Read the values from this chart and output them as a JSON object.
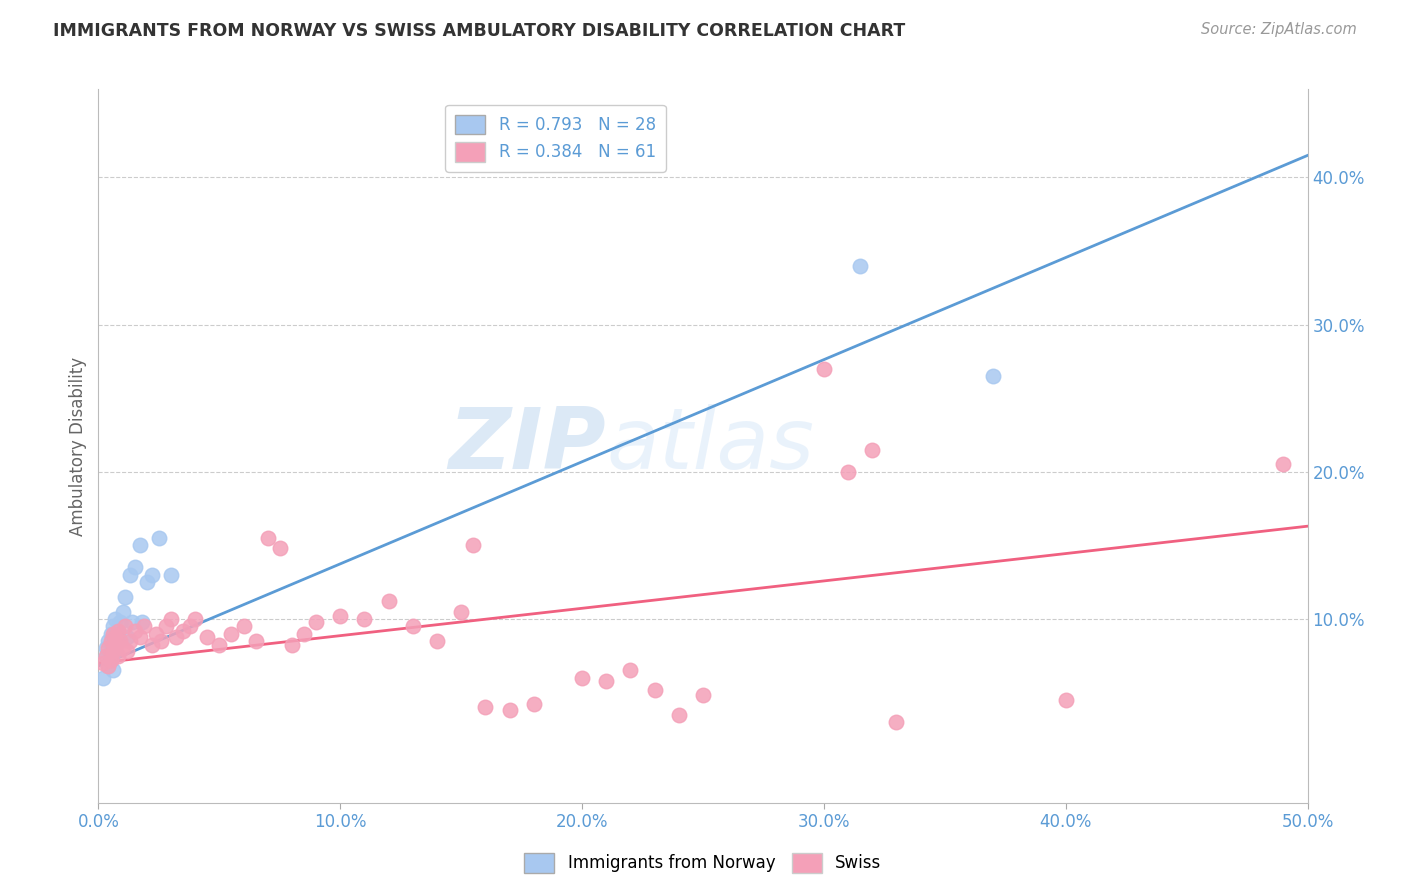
{
  "title": "IMMIGRANTS FROM NORWAY VS SWISS AMBULATORY DISABILITY CORRELATION CHART",
  "source": "Source: ZipAtlas.com",
  "ylabel": "Ambulatory Disability",
  "xlim": [
    0.0,
    0.5
  ],
  "ylim": [
    -0.025,
    0.46
  ],
  "x_ticks": [
    0.0,
    0.1,
    0.2,
    0.3,
    0.4,
    0.5
  ],
  "x_tick_labels": [
    "0.0%",
    "10.0%",
    "20.0%",
    "30.0%",
    "40.0%",
    "50.0%"
  ],
  "y_ticks_right": [
    0.1,
    0.2,
    0.3,
    0.4
  ],
  "y_tick_labels_right": [
    "10.0%",
    "20.0%",
    "30.0%",
    "40.0%"
  ],
  "norway_color": "#A8C8F0",
  "swiss_color": "#F4A0B8",
  "norway_R": 0.793,
  "norway_N": 28,
  "swiss_R": 0.384,
  "swiss_N": 61,
  "norway_line_color": "#5B9BD5",
  "swiss_line_color": "#F06080",
  "background_color": "#FFFFFF",
  "grid_color": "#CCCCCC",
  "watermark_zip": "ZIP",
  "watermark_atlas": "atlas",
  "norway_x": [
    0.002,
    0.003,
    0.003,
    0.004,
    0.004,
    0.005,
    0.005,
    0.006,
    0.006,
    0.007,
    0.007,
    0.008,
    0.008,
    0.009,
    0.01,
    0.011,
    0.012,
    0.013,
    0.014,
    0.015,
    0.017,
    0.018,
    0.02,
    0.022,
    0.025,
    0.03,
    0.315,
    0.37
  ],
  "norway_y": [
    0.06,
    0.08,
    0.075,
    0.085,
    0.068,
    0.09,
    0.072,
    0.095,
    0.065,
    0.1,
    0.078,
    0.092,
    0.085,
    0.098,
    0.105,
    0.115,
    0.088,
    0.13,
    0.098,
    0.135,
    0.15,
    0.098,
    0.125,
    0.13,
    0.155,
    0.13,
    0.34,
    0.265
  ],
  "norway_line_x0": 0.0,
  "norway_line_x1": 0.5,
  "norway_line_y0": 0.068,
  "norway_line_y1": 0.415,
  "swiss_line_x0": 0.0,
  "swiss_line_x1": 0.5,
  "swiss_line_y0": 0.07,
  "swiss_line_y1": 0.163,
  "swiss_x": [
    0.002,
    0.003,
    0.004,
    0.004,
    0.005,
    0.005,
    0.006,
    0.006,
    0.007,
    0.007,
    0.008,
    0.008,
    0.009,
    0.01,
    0.011,
    0.012,
    0.013,
    0.015,
    0.017,
    0.019,
    0.022,
    0.024,
    0.026,
    0.028,
    0.03,
    0.032,
    0.035,
    0.038,
    0.04,
    0.045,
    0.05,
    0.055,
    0.06,
    0.065,
    0.07,
    0.075,
    0.08,
    0.085,
    0.09,
    0.1,
    0.11,
    0.12,
    0.13,
    0.14,
    0.15,
    0.155,
    0.16,
    0.17,
    0.18,
    0.2,
    0.21,
    0.22,
    0.23,
    0.24,
    0.25,
    0.3,
    0.31,
    0.32,
    0.33,
    0.4,
    0.49
  ],
  "swiss_y": [
    0.07,
    0.075,
    0.08,
    0.068,
    0.085,
    0.072,
    0.078,
    0.09,
    0.082,
    0.088,
    0.075,
    0.092,
    0.085,
    0.08,
    0.095,
    0.078,
    0.085,
    0.092,
    0.088,
    0.095,
    0.082,
    0.09,
    0.085,
    0.095,
    0.1,
    0.088,
    0.092,
    0.095,
    0.1,
    0.088,
    0.082,
    0.09,
    0.095,
    0.085,
    0.155,
    0.148,
    0.082,
    0.09,
    0.098,
    0.102,
    0.1,
    0.112,
    0.095,
    0.085,
    0.105,
    0.15,
    0.04,
    0.038,
    0.042,
    0.06,
    0.058,
    0.065,
    0.052,
    0.035,
    0.048,
    0.27,
    0.2,
    0.215,
    0.03,
    0.045,
    0.205
  ]
}
